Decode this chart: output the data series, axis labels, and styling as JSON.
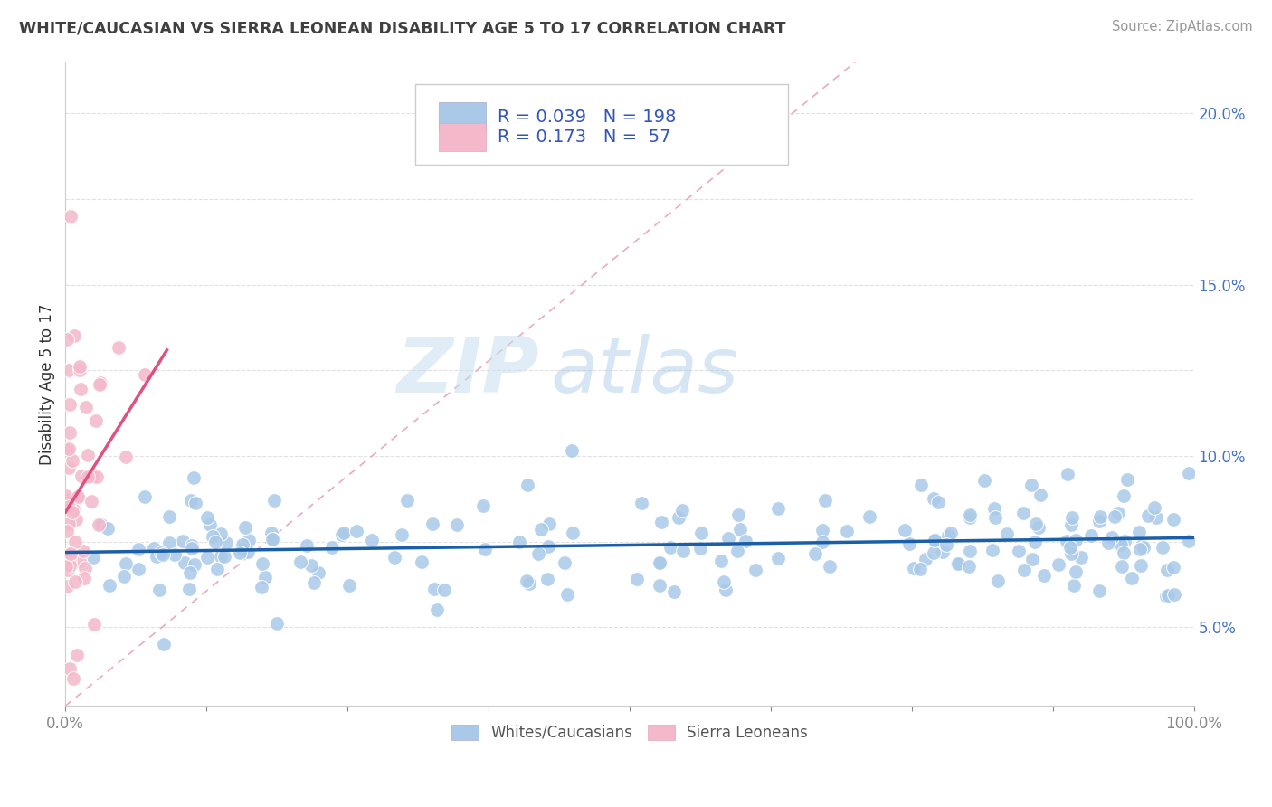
{
  "title": "WHITE/CAUCASIAN VS SIERRA LEONEAN DISABILITY AGE 5 TO 17 CORRELATION CHART",
  "source": "Source: ZipAtlas.com",
  "ylabel": "Disability Age 5 to 17",
  "xlim": [
    0,
    1
  ],
  "ylim": [
    0.027,
    0.215
  ],
  "background_color": "#ffffff",
  "grid_color": "#dddddd",
  "watermark_ZIP": "ZIP",
  "watermark_atlas": "atlas",
  "blue_color": "#aac9e8",
  "pink_color": "#f4b8ca",
  "blue_line_color": "#1a5fa8",
  "pink_line_color": "#e05080",
  "diag_line_color": "#e8b8c8",
  "legend_R1": "0.039",
  "legend_N1": "198",
  "legend_R2": "0.173",
  "legend_N2": "57",
  "ytick_vals": [
    0.05,
    0.075,
    0.1,
    0.125,
    0.15,
    0.175,
    0.2
  ],
  "ytick_labels": [
    "5.0%",
    "",
    "10.0%",
    "",
    "15.0%",
    "",
    "20.0%"
  ],
  "xtick_vals": [
    0.0,
    0.125,
    0.25,
    0.375,
    0.5,
    0.625,
    0.75,
    0.875,
    1.0
  ],
  "tick_color": "#4472c4",
  "axis_label_color": "#4472c4",
  "title_color": "#404040"
}
